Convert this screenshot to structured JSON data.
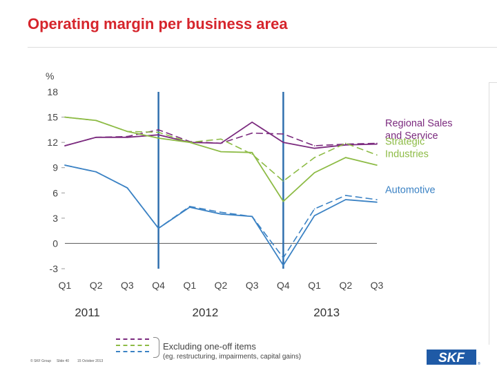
{
  "title": "Operating margin per business area",
  "chart_data": {
    "type": "line",
    "ylabel": "%",
    "y_ticks": [
      "18",
      "15",
      "12",
      "9",
      "6",
      "3",
      "0",
      "-3"
    ],
    "ylim": [
      -3,
      18
    ],
    "quarters": [
      "Q1",
      "Q2",
      "Q3",
      "Q4",
      "Q1",
      "Q2",
      "Q3",
      "Q4",
      "Q1",
      "Q2",
      "Q3"
    ],
    "years": [
      "2011",
      "2012",
      "2013"
    ],
    "series": [
      {
        "name": "Regional Sales and Service",
        "color": "#7b2a7e",
        "style": "solid",
        "values": [
          11.6,
          12.6,
          12.6,
          12.9,
          12.0,
          11.9,
          14.4,
          12.0,
          11.3,
          11.7,
          11.8
        ]
      },
      {
        "name": "Regional Sales and Service",
        "color": "#7b2a7e",
        "style": "dashed",
        "values": [
          11.6,
          12.6,
          12.7,
          13.5,
          12.1,
          11.9,
          13.1,
          13.0,
          11.6,
          11.8,
          11.9
        ]
      },
      {
        "name": "Strategic Industries",
        "color": "#8dbb45",
        "style": "solid",
        "values": [
          15.0,
          14.6,
          13.3,
          12.5,
          12.0,
          10.9,
          10.8,
          5.0,
          8.4,
          10.2,
          9.3
        ]
      },
      {
        "name": "Strategic Industries",
        "color": "#8dbb45",
        "style": "dashed",
        "values": [
          15.0,
          14.6,
          13.3,
          13.2,
          12.0,
          12.4,
          10.6,
          7.4,
          10.2,
          11.9,
          10.5
        ]
      },
      {
        "name": "Automotive",
        "color": "#3b82c4",
        "style": "solid",
        "values": [
          9.3,
          8.5,
          6.6,
          1.8,
          4.3,
          3.5,
          3.2,
          -2.6,
          3.3,
          5.2,
          4.9
        ]
      },
      {
        "name": "Automotive",
        "color": "#3b82c4",
        "style": "dashed",
        "values": [
          9.3,
          8.5,
          6.6,
          1.8,
          4.4,
          3.7,
          3.2,
          -1.7,
          4.1,
          5.7,
          5.2
        ]
      }
    ],
    "legend_labels": [
      {
        "text": "Regional Sales\nand Service",
        "color": "#7b2a7e"
      },
      {
        "text": "Strategic\nIndustries",
        "color": "#8dbb45"
      },
      {
        "text": "Automotive",
        "color": "#3b82c4"
      }
    ]
  },
  "note": {
    "main": "Excluding one-off items",
    "sub": "(eg. restructuring, impairments, capital gains)"
  },
  "footer": {
    "company": "© SKF Group",
    "slide": "Slide 40",
    "date": "15 October 2013"
  },
  "logo_text": "SKF"
}
